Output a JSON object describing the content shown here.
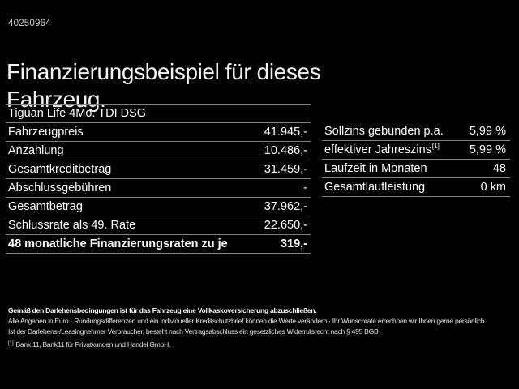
{
  "page": {
    "vehicle_id": "40250964",
    "title": "Finanzierungsbeispiel für dieses Fahrzeug.",
    "model": "Tiguan Life 4Mo. TDI DSG"
  },
  "finance_table": {
    "rows": [
      {
        "label": "Fahrzeugpreis",
        "value": "41.945,-"
      },
      {
        "label": "Anzahlung",
        "value": "10.486,-"
      },
      {
        "label": "Gesamtkreditbetrag",
        "value": "31.459,-"
      },
      {
        "label": "Abschlussgebühren",
        "value": "-"
      },
      {
        "label": "Gesamtbetrag",
        "value": "37.962,-"
      },
      {
        "label": "Schlussrate als 49. Rate",
        "value": "22.650,-"
      },
      {
        "label": "48 monatliche Finanzierungsraten zu je",
        "value": "319,-"
      }
    ]
  },
  "conditions_table": {
    "rows": [
      {
        "label": "Sollzins gebunden p.a.",
        "value": "5,99 %"
      },
      {
        "label": "effektiver Jahreszins",
        "sup": "[1]",
        "value": "5,99 %"
      },
      {
        "label": "Laufzeit in Monaten",
        "value": "48"
      },
      {
        "label": "Gesamtlaufleistung",
        "value": "0 km"
      }
    ]
  },
  "footnotes": {
    "insurance_bold": "Gemäß den Darlehensbedingungen ist für das Fahrzeug eine Vollkaskoversicherung abzuschließen.",
    "general": "Alle Angaben in Euro · Rundungsdifferenzen und ein individueller Kreditschutzbrief können die Werte verändern · Ihr Wunschrate errechnen wir Ihnen gerne persönlich",
    "withdrawal": "Ist der Darlehens-/Leasingnehmer Verbraucher, besteht nach Vertragsabschluss ein gesetzliches Widerrufsrecht nach § 495 BGB",
    "bank_sup": "[1]",
    "bank": "Bank 11, Bank11 für Privatkunden und Handel GmbH."
  },
  "colors": {
    "background": "#000000",
    "text": "#ffffff",
    "muted_text": "#cfcfcf",
    "divider": "#808080"
  }
}
